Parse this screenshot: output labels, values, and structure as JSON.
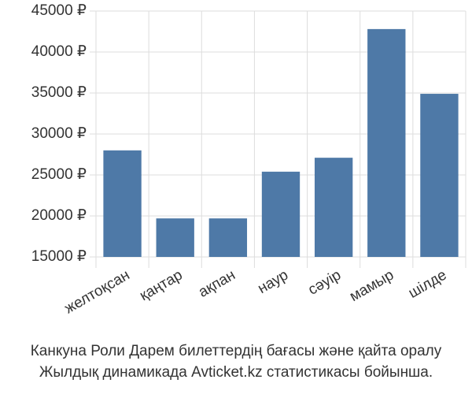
{
  "chart_data": {
    "type": "bar",
    "categories": [
      "желтоқсан",
      "қаңтар",
      "ақпан",
      "наур",
      "сәуір",
      "мамыр",
      "шілде"
    ],
    "values": [
      28000,
      19700,
      19700,
      25400,
      27100,
      42800,
      34900
    ],
    "color": "#4e79a7",
    "ylim": [
      15000,
      45000
    ],
    "yticks": [
      {
        "value": 15000,
        "label": "15000 ₽"
      },
      {
        "value": 20000,
        "label": "20000 ₽"
      },
      {
        "value": 25000,
        "label": "25000 ₽"
      },
      {
        "value": 30000,
        "label": "30000 ₽"
      },
      {
        "value": 35000,
        "label": "35000 ₽"
      },
      {
        "value": 40000,
        "label": "40000 ₽"
      },
      {
        "value": 45000,
        "label": "45000 ₽"
      }
    ],
    "grid": true,
    "caption": [
      "Канкуна Роли Дарем билеттердің бағасы және қайта оралу",
      "Жылдық динамикада Avticket.kz статистикасы бойынша."
    ]
  }
}
